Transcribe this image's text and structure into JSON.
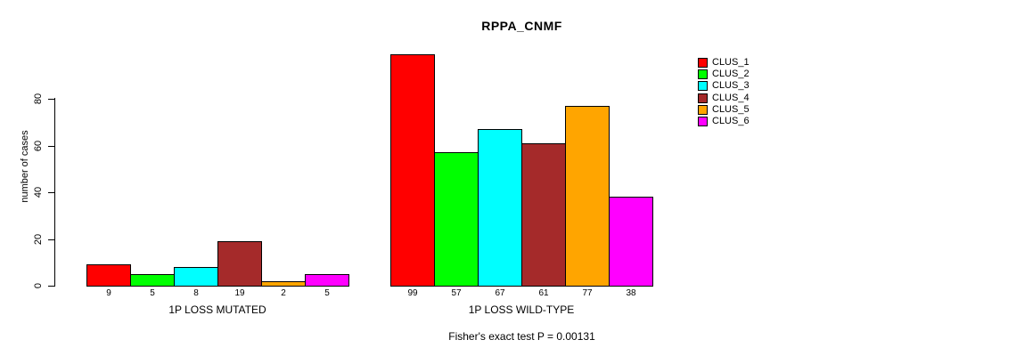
{
  "chart_data": {
    "type": "bar",
    "title": "RPPA_CNMF",
    "ylabel": "number of cases",
    "xlabel": "",
    "ylim": [
      0,
      80
    ],
    "yticks": [
      0,
      20,
      40,
      60,
      80
    ],
    "grid": false,
    "legend_position": "right-outside",
    "groups": [
      "1P LOSS MUTATED",
      "1P LOSS WILD-TYPE"
    ],
    "series": [
      {
        "name": "CLUS_1",
        "color": "#FF0000",
        "values": [
          9,
          99
        ]
      },
      {
        "name": "CLUS_2",
        "color": "#00FF00",
        "values": [
          5,
          57
        ]
      },
      {
        "name": "CLUS_3",
        "color": "#00FFFF",
        "values": [
          8,
          67
        ]
      },
      {
        "name": "CLUS_4",
        "color": "#A52A2A",
        "values": [
          19,
          61
        ]
      },
      {
        "name": "CLUS_5",
        "color": "#FFA500",
        "values": [
          2,
          77
        ]
      },
      {
        "name": "CLUS_6",
        "color": "#FF00FF",
        "values": [
          5,
          38
        ]
      }
    ],
    "bar_value_labels": [
      [
        9,
        5,
        8,
        19,
        2,
        5
      ],
      [
        99,
        57,
        67,
        61,
        77,
        38
      ]
    ],
    "annotation": "Fisher's exact test P = 0.00131"
  }
}
